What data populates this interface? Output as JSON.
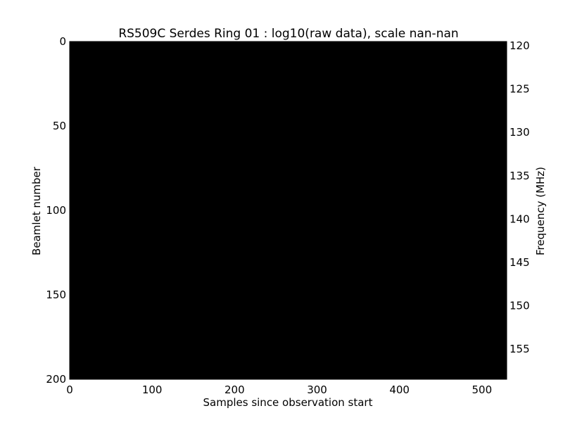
{
  "chart_data": {
    "type": "heatmap",
    "title": "RS509C Serdes Ring 01 : log10(raw data), scale nan-nan",
    "xlabel": "Samples since observation start",
    "ylabel": "Beamlet number",
    "y2label": "Frequency (MHz)",
    "xlim": [
      0,
      530
    ],
    "ylim": [
      0,
      200
    ],
    "y2lim": [
      119.5,
      158.5
    ],
    "xticks": [
      "0",
      "100",
      "200",
      "300",
      "400",
      "500"
    ],
    "yticks": [
      "0",
      "50",
      "100",
      "150",
      "200"
    ],
    "y2ticks": [
      "120",
      "125",
      "130",
      "135",
      "140",
      "145",
      "150",
      "155"
    ],
    "fill_color": "#000000",
    "grid": false
  }
}
